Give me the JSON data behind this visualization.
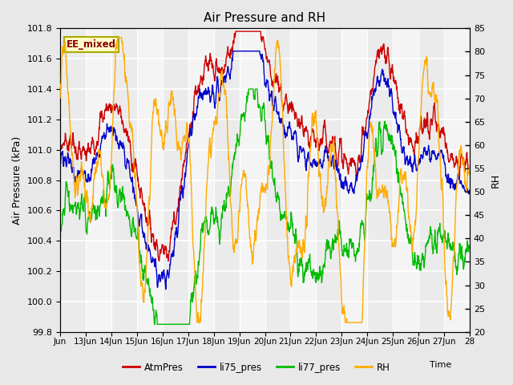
{
  "title": "Air Pressure and RH",
  "xlabel": "Time",
  "ylabel_left": "Air Pressure (kPa)",
  "ylabel_right": "RH",
  "annotation": "EE_mixed",
  "ylim_left": [
    99.8,
    101.8
  ],
  "ylim_right": [
    20,
    85
  ],
  "yticks_left": [
    99.8,
    100.0,
    100.2,
    100.4,
    100.6,
    100.8,
    101.0,
    101.2,
    101.4,
    101.6,
    101.8
  ],
  "yticks_right": [
    20,
    25,
    30,
    35,
    40,
    45,
    50,
    55,
    60,
    65,
    70,
    75,
    80,
    85
  ],
  "xtick_labels": [
    "Jun",
    "13Jun",
    "14Jun",
    "15Jun",
    "16Jun",
    "17Jun",
    "18Jun",
    "19Jun",
    "20Jun",
    "21Jun",
    "22Jun",
    "23Jun",
    "24Jun",
    "25Jun",
    "26Jun",
    "27Jun",
    "28"
  ],
  "colors": {
    "AtmPres": "#cc0000",
    "li75_pres": "#0000cc",
    "li77_pres": "#00bb00",
    "RH": "#ffaa00"
  },
  "legend_labels": [
    "AtmPres",
    "li75_pres",
    "li77_pres",
    "RH"
  ],
  "bg_color": "#e8e8e8",
  "plot_bg_color": "#ebebeb",
  "grid_color": "#ffffff",
  "annotation_bg": "#ffffcc",
  "annotation_border": "#aaaa00",
  "annotation_text_color": "#8b0000"
}
